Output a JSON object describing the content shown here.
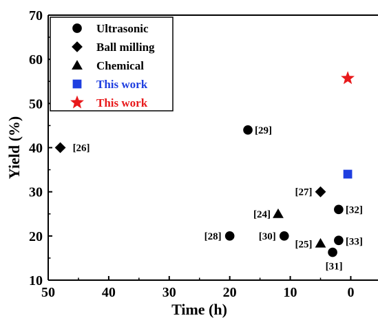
{
  "chart_data": {
    "type": "scatter",
    "xlabel": "Time (h)",
    "ylabel": "Yield (%)",
    "xlim": [
      50,
      -4.5
    ],
    "ylim": [
      10,
      70
    ],
    "x_reversed": true,
    "xticks": [
      50,
      40,
      30,
      20,
      10,
      0
    ],
    "yticks": [
      10,
      20,
      30,
      40,
      50,
      60,
      70
    ],
    "grid": false,
    "legend_position": "top-left",
    "series": [
      {
        "name": "Ultrasonic",
        "marker": "circle",
        "color": "#000000",
        "points": [
          {
            "x": 17,
            "y": 44,
            "label": "[29]"
          },
          {
            "x": 20,
            "y": 20,
            "label": "[28]"
          },
          {
            "x": 11,
            "y": 20,
            "label": "[30]"
          },
          {
            "x": 2,
            "y": 26,
            "label": "[32]"
          },
          {
            "x": 2,
            "y": 19,
            "label": "[33]"
          },
          {
            "x": 3,
            "y": 16.3,
            "label": "[31]"
          }
        ]
      },
      {
        "name": "Ball milling",
        "marker": "diamond",
        "color": "#000000",
        "points": [
          {
            "x": 48,
            "y": 40,
            "label": "[26]"
          },
          {
            "x": 5,
            "y": 30,
            "label": "[27]"
          }
        ]
      },
      {
        "name": "Chemical",
        "marker": "triangle",
        "color": "#000000",
        "points": [
          {
            "x": 12,
            "y": 25,
            "label": "[24]"
          },
          {
            "x": 5,
            "y": 18.3,
            "label": "[25]"
          }
        ]
      },
      {
        "name": "This work",
        "marker": "square",
        "color": "#1f3fe0",
        "points": [
          {
            "x": 0.5,
            "y": 34
          }
        ]
      },
      {
        "name": "This work",
        "marker": "star",
        "color": "#e8191b",
        "points": [
          {
            "x": 0.5,
            "y": 55.7
          }
        ]
      }
    ]
  }
}
